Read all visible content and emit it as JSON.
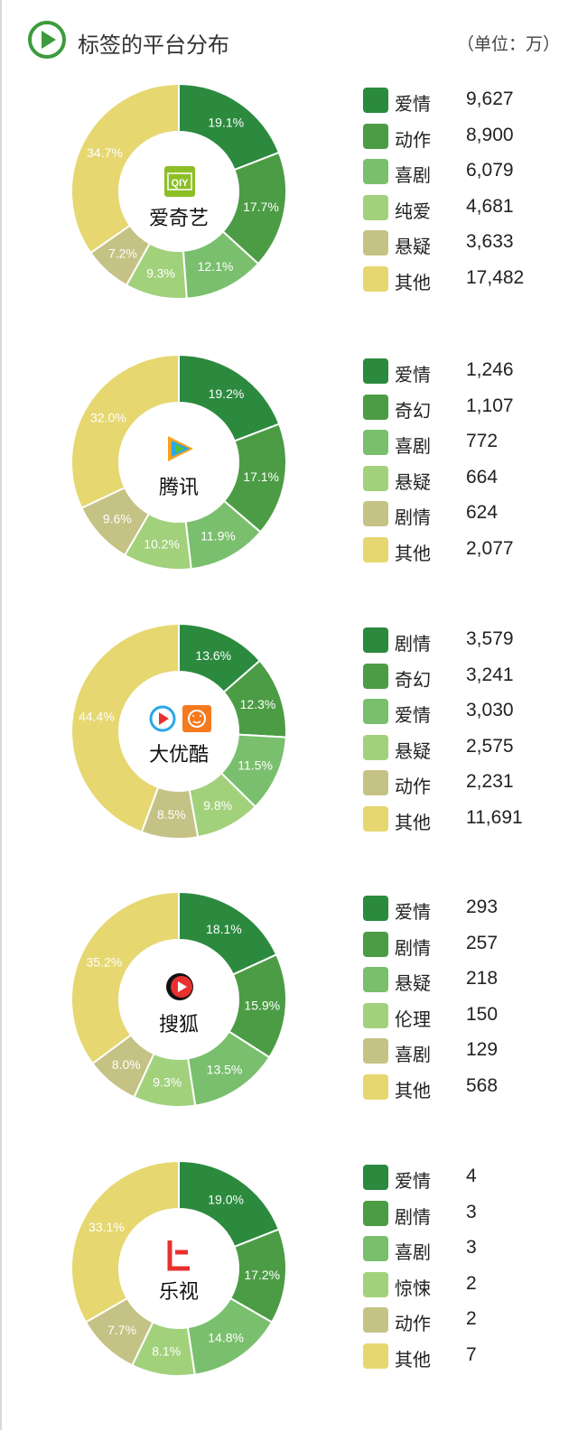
{
  "header": {
    "title": "标签的平台分布",
    "unit": "（单位：万）"
  },
  "colors": [
    "#2b8a3e",
    "#4c9c45",
    "#7abf6e",
    "#a2d17c",
    "#c5c285",
    "#e6d770"
  ],
  "icons": {
    "header": "play-circle-icon"
  },
  "chart_data": [
    {
      "type": "pie",
      "donut": true,
      "platform": "爱奇艺",
      "logo": "iqiyi-logo",
      "categories": [
        "爱情",
        "动作",
        "喜剧",
        "纯爱",
        "悬疑",
        "其他"
      ],
      "values": [
        9627,
        8900,
        6079,
        4681,
        3633,
        17482
      ],
      "value_labels": [
        "9,627",
        "8,900",
        "6,079",
        "4,681",
        "3,633",
        "17,482"
      ],
      "percent": [
        19.1,
        17.7,
        12.1,
        9.3,
        7.2,
        34.7
      ],
      "percent_labels": [
        "19.1%",
        "17.7%",
        "12.1%",
        "9.3%",
        "7.2%",
        "34.7%"
      ],
      "legend": "right"
    },
    {
      "type": "pie",
      "donut": true,
      "platform": "腾讯",
      "logo": "tencent-video-logo",
      "categories": [
        "爱情",
        "奇幻",
        "喜剧",
        "悬疑",
        "剧情",
        "其他"
      ],
      "values": [
        1246,
        1107,
        772,
        664,
        624,
        2077
      ],
      "value_labels": [
        "1,246",
        "1,107",
        "772",
        "664",
        "624",
        "2,077"
      ],
      "percent": [
        19.2,
        17.1,
        11.9,
        10.2,
        9.6,
        32.0
      ],
      "percent_labels": [
        "19.2%",
        "17.1%",
        "11.9%",
        "10.2%",
        "9.6%",
        "32.0%"
      ],
      "legend": "right"
    },
    {
      "type": "pie",
      "donut": true,
      "platform": "大优酷",
      "logo": "youku-tudou-logo",
      "categories": [
        "剧情",
        "奇幻",
        "爱情",
        "悬疑",
        "动作",
        "其他"
      ],
      "values": [
        3579,
        3241,
        3030,
        2575,
        2231,
        11691
      ],
      "value_labels": [
        "3,579",
        "3,241",
        "3,030",
        "2,575",
        "2,231",
        "11,691"
      ],
      "percent": [
        13.6,
        12.3,
        11.5,
        9.8,
        8.5,
        44.4
      ],
      "percent_labels": [
        "13.6%",
        "12.3%",
        "11.5%",
        "9.8%",
        "8.5%",
        "44.4%"
      ],
      "legend": "right"
    },
    {
      "type": "pie",
      "donut": true,
      "platform": "搜狐",
      "logo": "sohu-video-logo",
      "categories": [
        "爱情",
        "剧情",
        "悬疑",
        "伦理",
        "喜剧",
        "其他"
      ],
      "values": [
        293,
        257,
        218,
        150,
        129,
        568
      ],
      "value_labels": [
        "293",
        "257",
        "218",
        "150",
        "129",
        "568"
      ],
      "percent": [
        18.1,
        15.9,
        13.5,
        9.3,
        8.0,
        35.2
      ],
      "percent_labels": [
        "18.1%",
        "15.9%",
        "13.5%",
        "9.3%",
        "8.0%",
        "35.2%"
      ],
      "legend": "right"
    },
    {
      "type": "pie",
      "donut": true,
      "platform": "乐视",
      "logo": "letv-logo",
      "categories": [
        "爱情",
        "剧情",
        "喜剧",
        "惊悚",
        "动作",
        "其他"
      ],
      "values": [
        4,
        3,
        3,
        2,
        2,
        7
      ],
      "value_labels": [
        "4",
        "3",
        "3",
        "2",
        "2",
        "7"
      ],
      "percent": [
        19.0,
        17.2,
        14.8,
        8.1,
        7.7,
        33.1
      ],
      "percent_labels": [
        "19.0%",
        "17.2%",
        "14.8%",
        "8.1%",
        "7.7%",
        "33.1%"
      ],
      "legend": "right"
    }
  ]
}
